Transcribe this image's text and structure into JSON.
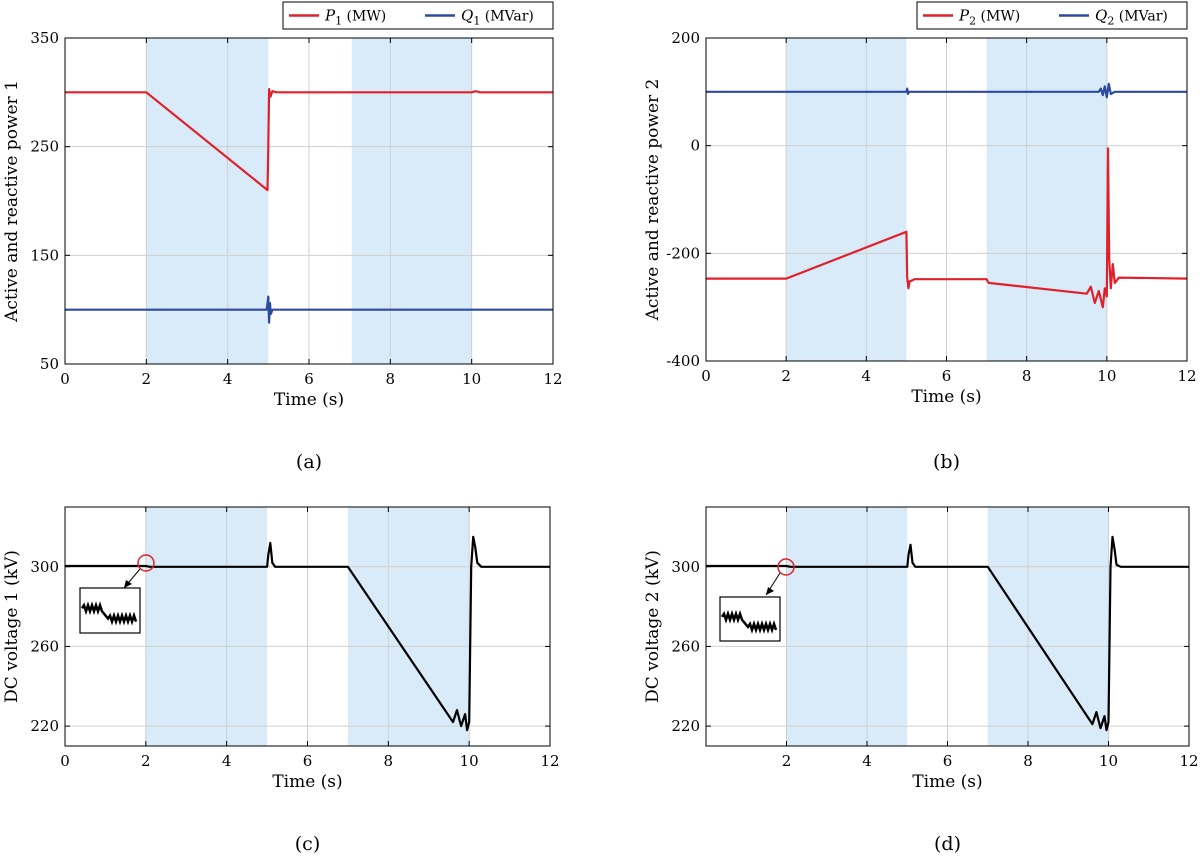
{
  "chart_data": [
    {
      "type": "line",
      "caption": "(a)",
      "xlabel": "Time (s)",
      "ylabel": "Active and reactive power 1",
      "xlim": [
        0,
        12
      ],
      "ylim": [
        50,
        350
      ],
      "xticks": [
        "0",
        "2",
        "4",
        "6",
        "8",
        "10",
        "12"
      ],
      "yticks": [
        "50",
        "150",
        "250",
        "350"
      ],
      "grid": true,
      "legend_position": "top-right",
      "shaded_intervals": [
        [
          2,
          5
        ],
        [
          7.05,
          10
        ]
      ],
      "series": [
        {
          "name": "P",
          "subscript": "1",
          "unit": " (MW)",
          "color": "#e0202a",
          "x": [
            0,
            2,
            4.98,
            5.0,
            5.02,
            5.05,
            5.1,
            5.2,
            10,
            10.1,
            10.2,
            12
          ],
          "y": [
            300,
            300,
            210,
            250,
            303,
            296,
            301,
            300,
            300,
            301,
            300,
            300
          ]
        },
        {
          "name": "Q",
          "subscript": "1",
          "unit": " (MVar)",
          "color": "#2e4a9e",
          "x": [
            0,
            4.96,
            5.0,
            5.02,
            5.04,
            5.06,
            5.1,
            12
          ],
          "y": [
            100,
            100,
            112,
            88,
            106,
            96,
            100,
            100
          ]
        }
      ]
    },
    {
      "type": "line",
      "caption": "(b)",
      "xlabel": "Time (s)",
      "ylabel": "Active and reactive power 2",
      "xlim": [
        0,
        12
      ],
      "ylim": [
        -400,
        200
      ],
      "xticks": [
        "0",
        "2",
        "4",
        "6",
        "8",
        "10",
        "12"
      ],
      "yticks": [
        "-400",
        "-200",
        "0",
        "200"
      ],
      "grid": true,
      "legend_position": "top-right",
      "shaded_intervals": [
        [
          2,
          5
        ],
        [
          7,
          10
        ]
      ],
      "series": [
        {
          "name": "P",
          "subscript": "2",
          "unit": " (MW)",
          "color": "#e0202a",
          "x": [
            0,
            2,
            5.0,
            5.02,
            5.05,
            5.08,
            5.15,
            5.2,
            7,
            7.05,
            9.5,
            9.6,
            9.7,
            9.8,
            9.9,
            9.95,
            10.0,
            10.03,
            10.06,
            10.1,
            10.15,
            10.2,
            10.3,
            12
          ],
          "y": [
            -247,
            -247,
            -160,
            -245,
            -265,
            -252,
            -250,
            -248,
            -248,
            -255,
            -275,
            -262,
            -292,
            -270,
            -300,
            -265,
            -280,
            -5,
            -210,
            -265,
            -220,
            -255,
            -245,
            -247
          ]
        },
        {
          "name": "Q",
          "subscript": "2",
          "unit": " (MVar)",
          "color": "#2e4a9e",
          "x": [
            0,
            5.0,
            5.02,
            5.04,
            5.06,
            9.8,
            9.85,
            9.9,
            9.95,
            10.0,
            10.05,
            10.1,
            10.2,
            12
          ],
          "y": [
            100,
            100,
            106,
            96,
            100,
            100,
            106,
            94,
            110,
            90,
            115,
            96,
            100,
            100
          ]
        }
      ]
    },
    {
      "type": "line",
      "caption": "(c)",
      "xlabel": "Time (s)",
      "ylabel": "DC voltage 1 (kV)",
      "xlim": [
        0,
        12
      ],
      "ylim": [
        210,
        330
      ],
      "xticks": [
        "0",
        "2",
        "4",
        "6",
        "8",
        "10",
        "12"
      ],
      "yticks": [
        "220",
        "260",
        "300"
      ],
      "grid": true,
      "shaded_intervals": [
        [
          2,
          5
        ],
        [
          7,
          10
        ]
      ],
      "series": [
        {
          "name": "",
          "color": "#000000",
          "x": [
            0,
            2,
            2.1,
            5.0,
            5.03,
            5.08,
            5.13,
            5.2,
            7,
            9.5,
            9.6,
            9.7,
            9.8,
            9.9,
            9.95,
            10.0,
            10.05,
            10.1,
            10.15,
            10.2,
            10.3,
            12
          ],
          "y": [
            300.4,
            300.4,
            300.0,
            300.0,
            306,
            312,
            302,
            300,
            300,
            225,
            222,
            228,
            220,
            226,
            218,
            222,
            300,
            315,
            310,
            302,
            300,
            300
          ]
        }
      ]
    },
    {
      "type": "line",
      "caption": "(d)",
      "xlabel": "Time (s)",
      "ylabel": "DC voltage 2 (kV)",
      "xlim": [
        0,
        12
      ],
      "ylim": [
        210,
        330
      ],
      "xticks": [
        "2",
        "4",
        "6",
        "8",
        "10",
        "12"
      ],
      "yticks": [
        "220",
        "260",
        "300"
      ],
      "grid": true,
      "shaded_intervals": [
        [
          2,
          5
        ],
        [
          7,
          10
        ]
      ],
      "series": [
        {
          "name": "",
          "color": "#000000",
          "x": [
            0,
            2,
            2.1,
            5.0,
            5.03,
            5.08,
            5.13,
            5.2,
            7,
            9.5,
            9.6,
            9.7,
            9.8,
            9.9,
            9.95,
            10.0,
            10.05,
            10.1,
            10.15,
            10.2,
            10.3,
            12
          ],
          "y": [
            300.4,
            300.4,
            300.0,
            300.0,
            306,
            311,
            302,
            300,
            300,
            224,
            221,
            227,
            219,
            225,
            218,
            222,
            300,
            315,
            309,
            301,
            300,
            300
          ]
        }
      ]
    }
  ]
}
